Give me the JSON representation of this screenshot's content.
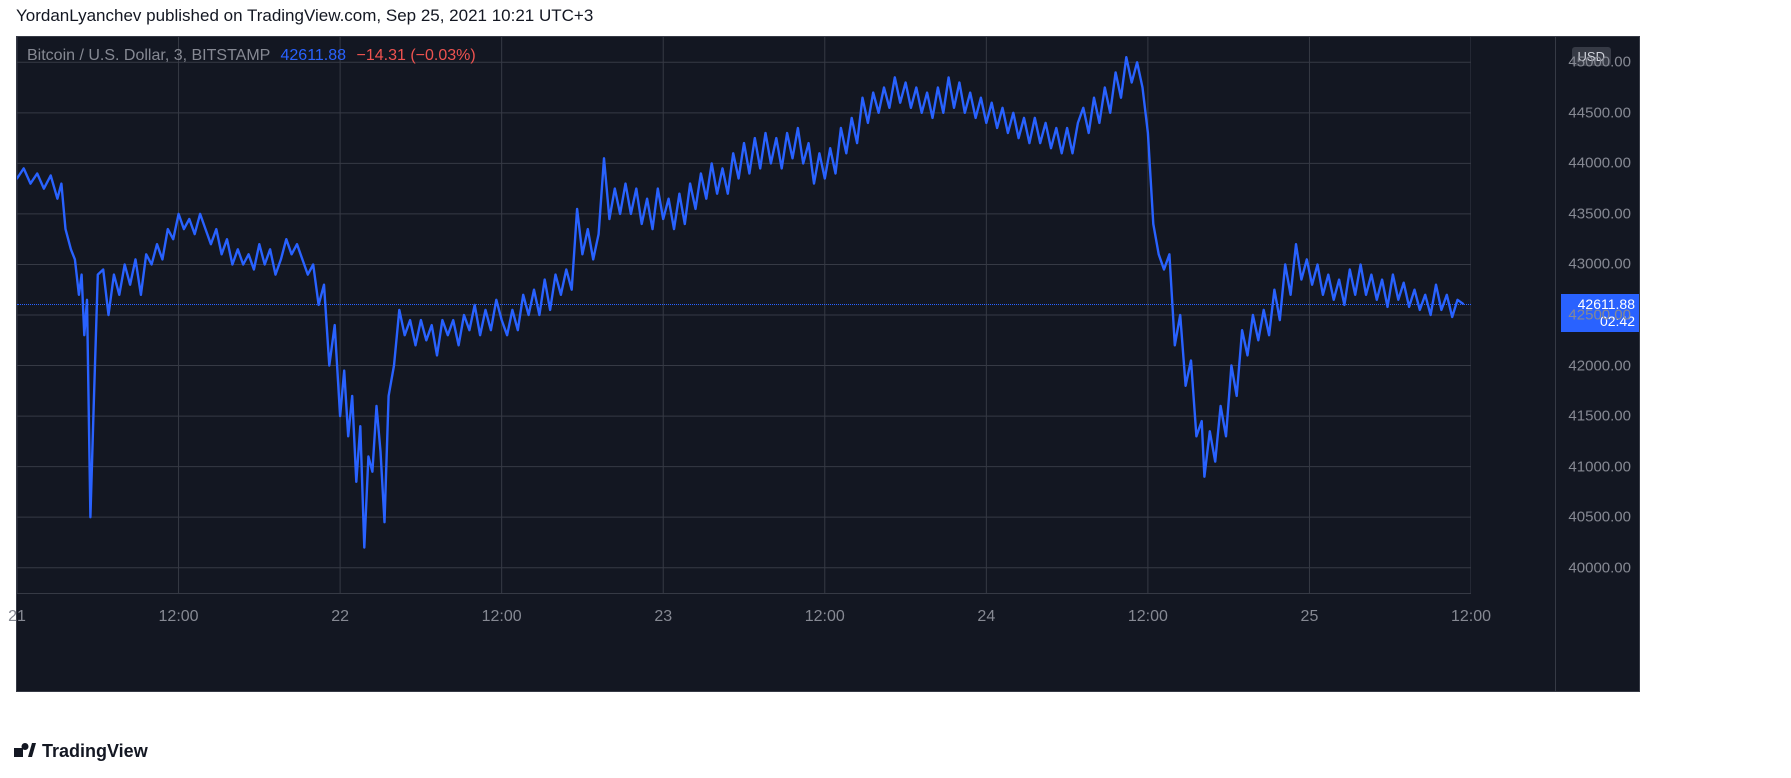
{
  "attribution": "YordanLyanchev published on TradingView.com, Sep 25, 2021 10:21 UTC+3",
  "footer_brand": "TradingView",
  "legend": {
    "pair": "Bitcoin / U.S. Dollar, 3, BITSTAMP",
    "price": "42611.88",
    "change": "−14.31 (−0.03%)"
  },
  "chart": {
    "type": "line",
    "background_color": "#131722",
    "grid_color": "#363a45",
    "text_color": "#868993",
    "line_color": "#2962ff",
    "line_width": 2.4,
    "currency_tag": "USD",
    "price_badge": {
      "price": "42611.88",
      "countdown": "02:42",
      "bg": "#2962ff"
    },
    "last_price": 42611.88,
    "yaxis": {
      "min": 39750,
      "max": 45250,
      "ticks": [
        40000,
        40500,
        41000,
        41500,
        42000,
        42500,
        43000,
        43500,
        44000,
        44500,
        45000
      ],
      "labels": [
        "40000.00",
        "40500.00",
        "41000.00",
        "41500.00",
        "42000.00",
        "42500.00",
        "43000.00",
        "43500.00",
        "44000.00",
        "44500.00",
        "45000.00"
      ]
    },
    "xaxis": {
      "min": 0,
      "max": 108,
      "gridlines_at": [
        0,
        12,
        24,
        36,
        48,
        60,
        72,
        84,
        96,
        108
      ],
      "ticks": [
        {
          "x": 0,
          "label": "21"
        },
        {
          "x": 12,
          "label": "12:00"
        },
        {
          "x": 24,
          "label": "22"
        },
        {
          "x": 36,
          "label": "12:00"
        },
        {
          "x": 48,
          "label": "23"
        },
        {
          "x": 60,
          "label": "12:00"
        },
        {
          "x": 72,
          "label": "24"
        },
        {
          "x": 84,
          "label": "12:00"
        },
        {
          "x": 96,
          "label": "25"
        },
        {
          "x": 108,
          "label": "12:00"
        }
      ]
    },
    "series": [
      [
        0,
        43850
      ],
      [
        0.5,
        43950
      ],
      [
        1,
        43800
      ],
      [
        1.5,
        43900
      ],
      [
        2,
        43750
      ],
      [
        2.5,
        43880
      ],
      [
        3,
        43650
      ],
      [
        3.3,
        43800
      ],
      [
        3.6,
        43350
      ],
      [
        4,
        43150
      ],
      [
        4.3,
        43050
      ],
      [
        4.6,
        42700
      ],
      [
        4.8,
        42900
      ],
      [
        5,
        42300
      ],
      [
        5.2,
        42650
      ],
      [
        5.45,
        40500
      ],
      [
        5.7,
        41600
      ],
      [
        6,
        42900
      ],
      [
        6.4,
        42950
      ],
      [
        6.8,
        42500
      ],
      [
        7.2,
        42900
      ],
      [
        7.6,
        42700
      ],
      [
        8,
        43000
      ],
      [
        8.4,
        42800
      ],
      [
        8.8,
        43050
      ],
      [
        9.2,
        42700
      ],
      [
        9.6,
        43100
      ],
      [
        10,
        43000
      ],
      [
        10.4,
        43200
      ],
      [
        10.8,
        43050
      ],
      [
        11.2,
        43350
      ],
      [
        11.6,
        43250
      ],
      [
        12,
        43500
      ],
      [
        12.4,
        43350
      ],
      [
        12.8,
        43450
      ],
      [
        13.2,
        43300
      ],
      [
        13.6,
        43500
      ],
      [
        14,
        43350
      ],
      [
        14.4,
        43200
      ],
      [
        14.8,
        43350
      ],
      [
        15.2,
        43100
      ],
      [
        15.6,
        43250
      ],
      [
        16,
        43000
      ],
      [
        16.4,
        43150
      ],
      [
        16.8,
        43000
      ],
      [
        17.2,
        43100
      ],
      [
        17.6,
        42950
      ],
      [
        18,
        43200
      ],
      [
        18.4,
        43000
      ],
      [
        18.8,
        43150
      ],
      [
        19.2,
        42900
      ],
      [
        19.6,
        43050
      ],
      [
        20,
        43250
      ],
      [
        20.4,
        43100
      ],
      [
        20.8,
        43200
      ],
      [
        21.2,
        43050
      ],
      [
        21.6,
        42900
      ],
      [
        22,
        43000
      ],
      [
        22.4,
        42600
      ],
      [
        22.8,
        42800
      ],
      [
        23.2,
        42000
      ],
      [
        23.6,
        42400
      ],
      [
        24,
        41500
      ],
      [
        24.3,
        41950
      ],
      [
        24.6,
        41300
      ],
      [
        24.9,
        41700
      ],
      [
        25.2,
        40850
      ],
      [
        25.5,
        41400
      ],
      [
        25.8,
        40200
      ],
      [
        26.1,
        41100
      ],
      [
        26.4,
        40950
      ],
      [
        26.7,
        41600
      ],
      [
        27,
        41150
      ],
      [
        27.3,
        40450
      ],
      [
        27.6,
        41700
      ],
      [
        28,
        42000
      ],
      [
        28.4,
        42550
      ],
      [
        28.8,
        42300
      ],
      [
        29.2,
        42450
      ],
      [
        29.6,
        42200
      ],
      [
        30,
        42450
      ],
      [
        30.4,
        42250
      ],
      [
        30.8,
        42400
      ],
      [
        31.2,
        42100
      ],
      [
        31.6,
        42450
      ],
      [
        32,
        42300
      ],
      [
        32.4,
        42450
      ],
      [
        32.8,
        42200
      ],
      [
        33.2,
        42500
      ],
      [
        33.6,
        42350
      ],
      [
        34,
        42600
      ],
      [
        34.4,
        42300
      ],
      [
        34.8,
        42550
      ],
      [
        35.2,
        42350
      ],
      [
        35.6,
        42650
      ],
      [
        36,
        42450
      ],
      [
        36.4,
        42300
      ],
      [
        36.8,
        42550
      ],
      [
        37.2,
        42350
      ],
      [
        37.6,
        42700
      ],
      [
        38,
        42500
      ],
      [
        38.4,
        42750
      ],
      [
        38.8,
        42500
      ],
      [
        39.2,
        42850
      ],
      [
        39.6,
        42550
      ],
      [
        40,
        42900
      ],
      [
        40.4,
        42700
      ],
      [
        40.8,
        42950
      ],
      [
        41.2,
        42750
      ],
      [
        41.6,
        43550
      ],
      [
        42,
        43100
      ],
      [
        42.4,
        43350
      ],
      [
        42.8,
        43050
      ],
      [
        43.2,
        43300
      ],
      [
        43.6,
        44050
      ],
      [
        44,
        43450
      ],
      [
        44.4,
        43750
      ],
      [
        44.8,
        43500
      ],
      [
        45.2,
        43800
      ],
      [
        45.6,
        43500
      ],
      [
        46,
        43750
      ],
      [
        46.4,
        43400
      ],
      [
        46.8,
        43650
      ],
      [
        47.2,
        43350
      ],
      [
        47.6,
        43750
      ],
      [
        48,
        43450
      ],
      [
        48.4,
        43650
      ],
      [
        48.8,
        43350
      ],
      [
        49.2,
        43700
      ],
      [
        49.6,
        43400
      ],
      [
        50,
        43800
      ],
      [
        50.4,
        43550
      ],
      [
        50.8,
        43900
      ],
      [
        51.2,
        43650
      ],
      [
        51.6,
        44000
      ],
      [
        52,
        43700
      ],
      [
        52.4,
        43950
      ],
      [
        52.8,
        43700
      ],
      [
        53.2,
        44100
      ],
      [
        53.6,
        43850
      ],
      [
        54,
        44200
      ],
      [
        54.4,
        43900
      ],
      [
        54.8,
        44250
      ],
      [
        55.2,
        43950
      ],
      [
        55.6,
        44300
      ],
      [
        56,
        44000
      ],
      [
        56.4,
        44250
      ],
      [
        56.8,
        43950
      ],
      [
        57.2,
        44300
      ],
      [
        57.6,
        44050
      ],
      [
        58,
        44350
      ],
      [
        58.4,
        44000
      ],
      [
        58.8,
        44200
      ],
      [
        59.2,
        43800
      ],
      [
        59.6,
        44100
      ],
      [
        60,
        43850
      ],
      [
        60.4,
        44150
      ],
      [
        60.8,
        43900
      ],
      [
        61.2,
        44350
      ],
      [
        61.6,
        44100
      ],
      [
        62,
        44450
      ],
      [
        62.4,
        44200
      ],
      [
        62.8,
        44650
      ],
      [
        63.2,
        44400
      ],
      [
        63.6,
        44700
      ],
      [
        64,
        44500
      ],
      [
        64.4,
        44750
      ],
      [
        64.8,
        44550
      ],
      [
        65.2,
        44850
      ],
      [
        65.6,
        44600
      ],
      [
        66,
        44800
      ],
      [
        66.4,
        44550
      ],
      [
        66.8,
        44750
      ],
      [
        67.2,
        44500
      ],
      [
        67.6,
        44700
      ],
      [
        68,
        44450
      ],
      [
        68.4,
        44750
      ],
      [
        68.8,
        44500
      ],
      [
        69.2,
        44850
      ],
      [
        69.6,
        44550
      ],
      [
        70,
        44800
      ],
      [
        70.4,
        44500
      ],
      [
        70.8,
        44700
      ],
      [
        71.2,
        44450
      ],
      [
        71.6,
        44650
      ],
      [
        72,
        44400
      ],
      [
        72.4,
        44600
      ],
      [
        72.8,
        44350
      ],
      [
        73.2,
        44550
      ],
      [
        73.6,
        44300
      ],
      [
        74,
        44500
      ],
      [
        74.4,
        44250
      ],
      [
        74.8,
        44450
      ],
      [
        75.2,
        44200
      ],
      [
        75.6,
        44450
      ],
      [
        76,
        44200
      ],
      [
        76.4,
        44400
      ],
      [
        76.8,
        44150
      ],
      [
        77.2,
        44350
      ],
      [
        77.6,
        44100
      ],
      [
        78,
        44350
      ],
      [
        78.4,
        44100
      ],
      [
        78.8,
        44400
      ],
      [
        79.2,
        44550
      ],
      [
        79.6,
        44300
      ],
      [
        80,
        44650
      ],
      [
        80.4,
        44400
      ],
      [
        80.8,
        44750
      ],
      [
        81.2,
        44500
      ],
      [
        81.6,
        44900
      ],
      [
        82,
        44650
      ],
      [
        82.4,
        45050
      ],
      [
        82.8,
        44800
      ],
      [
        83.2,
        45000
      ],
      [
        83.6,
        44750
      ],
      [
        84,
        44300
      ],
      [
        84.4,
        43400
      ],
      [
        84.8,
        43100
      ],
      [
        85.2,
        42950
      ],
      [
        85.6,
        43100
      ],
      [
        86,
        42200
      ],
      [
        86.4,
        42500
      ],
      [
        86.8,
        41800
      ],
      [
        87.2,
        42050
      ],
      [
        87.6,
        41300
      ],
      [
        88,
        41450
      ],
      [
        88.2,
        40900
      ],
      [
        88.6,
        41350
      ],
      [
        89,
        41050
      ],
      [
        89.4,
        41600
      ],
      [
        89.8,
        41300
      ],
      [
        90.2,
        42000
      ],
      [
        90.6,
        41700
      ],
      [
        91,
        42350
      ],
      [
        91.4,
        42100
      ],
      [
        91.8,
        42500
      ],
      [
        92.2,
        42250
      ],
      [
        92.6,
        42550
      ],
      [
        93,
        42300
      ],
      [
        93.4,
        42750
      ],
      [
        93.8,
        42450
      ],
      [
        94.2,
        43000
      ],
      [
        94.6,
        42700
      ],
      [
        95,
        43200
      ],
      [
        95.4,
        42850
      ],
      [
        95.8,
        43050
      ],
      [
        96.2,
        42800
      ],
      [
        96.6,
        43000
      ],
      [
        97,
        42700
      ],
      [
        97.4,
        42900
      ],
      [
        97.8,
        42650
      ],
      [
        98.2,
        42850
      ],
      [
        98.6,
        42600
      ],
      [
        99,
        42950
      ],
      [
        99.4,
        42700
      ],
      [
        99.8,
        43000
      ],
      [
        100.2,
        42700
      ],
      [
        100.6,
        42900
      ],
      [
        101,
        42650
      ],
      [
        101.4,
        42850
      ],
      [
        101.8,
        42580
      ],
      [
        102.2,
        42900
      ],
      [
        102.6,
        42650
      ],
      [
        103,
        42820
      ],
      [
        103.4,
        42580
      ],
      [
        103.8,
        42750
      ],
      [
        104.2,
        42550
      ],
      [
        104.6,
        42700
      ],
      [
        105,
        42500
      ],
      [
        105.4,
        42800
      ],
      [
        105.8,
        42550
      ],
      [
        106.2,
        42700
      ],
      [
        106.6,
        42480
      ],
      [
        107,
        42650
      ],
      [
        107.4,
        42611.88
      ]
    ]
  }
}
